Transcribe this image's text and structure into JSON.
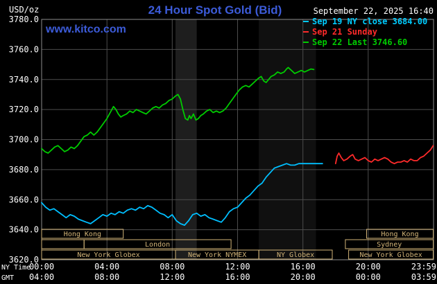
{
  "header": {
    "units_label": "USD/oz",
    "title": "24 Hour Spot Gold (Bid)",
    "title_color": "#3c5bd8",
    "datetime": "September 22, 2025 16:40",
    "watermark": "www.kitco.com"
  },
  "legend": {
    "items": [
      {
        "label": "Sep 19 NY close 3684.00",
        "color": "#00ccff"
      },
      {
        "label": "Sep 21 Sunday",
        "color": "#ff2a2a"
      },
      {
        "label": "Sep 22 Last 3746.60",
        "color": "#00cc00"
      }
    ]
  },
  "axes": {
    "ny_label": "NY Time",
    "gmt_label": "GMT",
    "ny_ticks": [
      "00:00",
      "04:00",
      "08:00",
      "12:00",
      "16:00",
      "20:00",
      "23:59"
    ],
    "gmt_ticks": [
      "04:00",
      "08:00",
      "12:00",
      "16:00",
      "20:00",
      "00:00",
      "03:59"
    ],
    "y_ticks": [
      "3780.0",
      "3760.0",
      "3740.0",
      "3720.0",
      "3700.0",
      "3680.0",
      "3660.0",
      "3640.0",
      "3620.0"
    ]
  },
  "chart_data": {
    "type": "line",
    "title": "24 Hour Spot Gold (Bid)",
    "ylabel": "USD/oz",
    "timestamp": "September 22, 2025 16:40",
    "xlim_hours": [
      0,
      24
    ],
    "ylim": [
      3620,
      3780
    ],
    "y_gridlines": [
      3620,
      3640,
      3660,
      3680,
      3700,
      3720,
      3740,
      3760,
      3780
    ],
    "x_gridline_hours": [
      4,
      8,
      12,
      16,
      20
    ],
    "colors": {
      "background": "#000000",
      "grid": "#4d4d4d",
      "border": "#8c8c8c",
      "session": "#d2b478",
      "title": "#3c5bd8"
    },
    "series": [
      {
        "name": "sep19-ny-close",
        "label": "Sep 19 NY close 3684.00",
        "color": "#00bfff",
        "points": [
          [
            0,
            3658
          ],
          [
            0.25,
            3655
          ],
          [
            0.5,
            3653
          ],
          [
            0.75,
            3654
          ],
          [
            1,
            3652
          ],
          [
            1.25,
            3650
          ],
          [
            1.5,
            3648
          ],
          [
            1.75,
            3650
          ],
          [
            2,
            3649
          ],
          [
            2.25,
            3647
          ],
          [
            2.5,
            3646
          ],
          [
            2.75,
            3645
          ],
          [
            3,
            3644
          ],
          [
            3.25,
            3646
          ],
          [
            3.5,
            3648
          ],
          [
            3.75,
            3650
          ],
          [
            4,
            3649
          ],
          [
            4.25,
            3651
          ],
          [
            4.5,
            3650
          ],
          [
            4.75,
            3652
          ],
          [
            5,
            3651
          ],
          [
            5.25,
            3653
          ],
          [
            5.5,
            3654
          ],
          [
            5.75,
            3653
          ],
          [
            6,
            3655
          ],
          [
            6.25,
            3654
          ],
          [
            6.5,
            3656
          ],
          [
            6.75,
            3655
          ],
          [
            7,
            3653
          ],
          [
            7.25,
            3651
          ],
          [
            7.5,
            3650
          ],
          [
            7.75,
            3648
          ],
          [
            8,
            3650
          ],
          [
            8.25,
            3646
          ],
          [
            8.5,
            3644
          ],
          [
            8.75,
            3643
          ],
          [
            9,
            3646
          ],
          [
            9.25,
            3650
          ],
          [
            9.5,
            3651
          ],
          [
            9.75,
            3649
          ],
          [
            10,
            3650
          ],
          [
            10.25,
            3648
          ],
          [
            10.5,
            3647
          ],
          [
            10.75,
            3646
          ],
          [
            11,
            3645
          ],
          [
            11.25,
            3648
          ],
          [
            11.5,
            3652
          ],
          [
            11.75,
            3654
          ],
          [
            12,
            3655
          ],
          [
            12.25,
            3658
          ],
          [
            12.5,
            3661
          ],
          [
            12.75,
            3663
          ],
          [
            13,
            3666
          ],
          [
            13.25,
            3669
          ],
          [
            13.5,
            3671
          ],
          [
            13.75,
            3675
          ],
          [
            14,
            3678
          ],
          [
            14.25,
            3681
          ],
          [
            14.5,
            3682
          ],
          [
            14.75,
            3683
          ],
          [
            15,
            3684
          ],
          [
            15.25,
            3683
          ],
          [
            15.5,
            3683
          ],
          [
            15.75,
            3684
          ],
          [
            16,
            3684
          ],
          [
            16.4,
            3684
          ],
          [
            16.8,
            3684
          ],
          [
            17.2,
            3684
          ]
        ]
      },
      {
        "name": "sep21-sunday",
        "label": "Sep 21 Sunday",
        "color": "#ff2a2a",
        "points": [
          [
            18,
            3684
          ],
          [
            18.1,
            3689
          ],
          [
            18.2,
            3691
          ],
          [
            18.35,
            3688
          ],
          [
            18.5,
            3686
          ],
          [
            18.7,
            3687
          ],
          [
            18.9,
            3689
          ],
          [
            19.05,
            3690
          ],
          [
            19.2,
            3687
          ],
          [
            19.4,
            3686
          ],
          [
            19.6,
            3687
          ],
          [
            19.8,
            3688
          ],
          [
            20,
            3686
          ],
          [
            20.2,
            3685
          ],
          [
            20.4,
            3687
          ],
          [
            20.6,
            3686
          ],
          [
            20.8,
            3687
          ],
          [
            21,
            3688
          ],
          [
            21.2,
            3687
          ],
          [
            21.4,
            3685
          ],
          [
            21.6,
            3684
          ],
          [
            21.8,
            3685
          ],
          [
            22,
            3685
          ],
          [
            22.2,
            3686
          ],
          [
            22.4,
            3685
          ],
          [
            22.6,
            3687
          ],
          [
            22.8,
            3686
          ],
          [
            23,
            3686
          ],
          [
            23.2,
            3688
          ],
          [
            23.4,
            3689
          ],
          [
            23.6,
            3691
          ],
          [
            23.8,
            3693
          ],
          [
            23.98,
            3696
          ]
        ]
      },
      {
        "name": "sep22-last",
        "label": "Sep 22 Last 3746.60",
        "color": "#00cc00",
        "points": [
          [
            0,
            3694
          ],
          [
            0.2,
            3692
          ],
          [
            0.4,
            3691
          ],
          [
            0.6,
            3693
          ],
          [
            0.8,
            3695
          ],
          [
            1,
            3696
          ],
          [
            1.2,
            3694
          ],
          [
            1.4,
            3692
          ],
          [
            1.6,
            3693
          ],
          [
            1.8,
            3695
          ],
          [
            2,
            3694
          ],
          [
            2.2,
            3696
          ],
          [
            2.4,
            3699
          ],
          [
            2.6,
            3702
          ],
          [
            2.8,
            3703
          ],
          [
            3,
            3705
          ],
          [
            3.2,
            3703
          ],
          [
            3.4,
            3705
          ],
          [
            3.6,
            3708
          ],
          [
            3.8,
            3711
          ],
          [
            4,
            3714
          ],
          [
            4.2,
            3718
          ],
          [
            4.4,
            3722
          ],
          [
            4.55,
            3720
          ],
          [
            4.7,
            3717
          ],
          [
            4.85,
            3715
          ],
          [
            5,
            3716
          ],
          [
            5.2,
            3717
          ],
          [
            5.4,
            3719
          ],
          [
            5.6,
            3718
          ],
          [
            5.8,
            3720
          ],
          [
            6,
            3719
          ],
          [
            6.2,
            3718
          ],
          [
            6.4,
            3717
          ],
          [
            6.6,
            3719
          ],
          [
            6.8,
            3721
          ],
          [
            7,
            3722
          ],
          [
            7.2,
            3721
          ],
          [
            7.4,
            3723
          ],
          [
            7.6,
            3724
          ],
          [
            7.8,
            3726
          ],
          [
            8,
            3727
          ],
          [
            8.2,
            3729
          ],
          [
            8.35,
            3730
          ],
          [
            8.5,
            3727
          ],
          [
            8.65,
            3720
          ],
          [
            8.8,
            3714
          ],
          [
            8.95,
            3713
          ],
          [
            9.05,
            3716
          ],
          [
            9.15,
            3714
          ],
          [
            9.3,
            3717
          ],
          [
            9.45,
            3713
          ],
          [
            9.6,
            3714
          ],
          [
            9.75,
            3716
          ],
          [
            9.9,
            3717
          ],
          [
            10.1,
            3719
          ],
          [
            10.3,
            3720
          ],
          [
            10.5,
            3718
          ],
          [
            10.7,
            3719
          ],
          [
            10.9,
            3718
          ],
          [
            11.1,
            3719
          ],
          [
            11.3,
            3721
          ],
          [
            11.5,
            3724
          ],
          [
            11.7,
            3727
          ],
          [
            11.9,
            3730
          ],
          [
            12.1,
            3733
          ],
          [
            12.3,
            3735
          ],
          [
            12.5,
            3736
          ],
          [
            12.7,
            3735
          ],
          [
            12.9,
            3737
          ],
          [
            13.1,
            3739
          ],
          [
            13.3,
            3741
          ],
          [
            13.45,
            3742
          ],
          [
            13.6,
            3739
          ],
          [
            13.75,
            3738
          ],
          [
            13.9,
            3740
          ],
          [
            14.05,
            3742
          ],
          [
            14.25,
            3743
          ],
          [
            14.45,
            3745
          ],
          [
            14.65,
            3744
          ],
          [
            14.85,
            3745
          ],
          [
            15,
            3747
          ],
          [
            15.1,
            3748
          ],
          [
            15.3,
            3746
          ],
          [
            15.5,
            3744
          ],
          [
            15.7,
            3745
          ],
          [
            15.9,
            3746
          ],
          [
            16.1,
            3745
          ],
          [
            16.3,
            3746
          ],
          [
            16.5,
            3747
          ],
          [
            16.67,
            3746.6
          ]
        ]
      }
    ],
    "sessions": [
      {
        "row": 0,
        "start": 0,
        "end": 5,
        "label": "Hong Kong"
      },
      {
        "row": 0,
        "start": 19.9,
        "end": 23.98,
        "label": "Hong Kong"
      },
      {
        "row": 1,
        "start": 0,
        "end": 2.6,
        "label": ""
      },
      {
        "row": 1,
        "start": 2.6,
        "end": 11.6,
        "label": "London"
      },
      {
        "row": 1,
        "start": 18.6,
        "end": 23.98,
        "label": "Sydney"
      },
      {
        "row": 2,
        "start": 0,
        "end": 8.2,
        "label": "New York Globex"
      },
      {
        "row": 2,
        "start": 8.2,
        "end": 13.3,
        "label": "New York NYMEX"
      },
      {
        "row": 2,
        "start": 13.3,
        "end": 17.8,
        "label": "NY Globex"
      },
      {
        "row": 2,
        "start": 18.8,
        "end": 23.98,
        "label": "New York Globex"
      }
    ],
    "bands": [
      {
        "start": 8.2,
        "end": 9.5,
        "color": "#1e1e1e"
      },
      {
        "start": 13.3,
        "end": 16.8,
        "color": "#101010"
      }
    ]
  }
}
